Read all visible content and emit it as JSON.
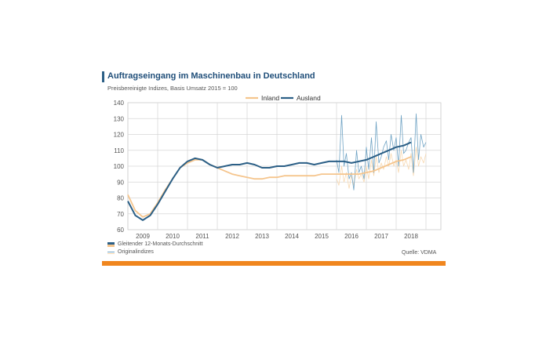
{
  "chart_data": {
    "type": "line",
    "title": "Auftragseingang im Maschinenbau in Deutschland",
    "subtitle": "Preisbereinigte Indizes, Basis Umsatz 2015 = 100",
    "ylim": [
      60,
      140
    ],
    "y_ticks": [
      "60",
      "70",
      "80",
      "90",
      "100",
      "110",
      "120",
      "130",
      "140"
    ],
    "x_tick_labels": [
      "2009",
      "2010",
      "2011",
      "2012",
      "2013",
      "2014",
      "2015",
      "2016",
      "2017",
      "2018"
    ],
    "x_range": [
      2008.5,
      2019.0
    ],
    "grid": true,
    "legend_position": "top",
    "colors": {
      "inland": "#f5c58d",
      "ausland": "#2b5f86",
      "ausland_orig": "#6fa3c4",
      "inland_orig": "#f7d8b0",
      "accent": "#f0861e"
    },
    "legend": [
      "Inland",
      "Ausland"
    ],
    "footer_legend": [
      "Gleitender 12-Monats-Durchschnitt",
      "Originalindizes"
    ],
    "source": "Quelle: VDMA",
    "series": [
      {
        "name": "Inland",
        "x": [
          2008.5,
          2008.75,
          2009.0,
          2009.25,
          2009.5,
          2009.75,
          2010.0,
          2010.25,
          2010.5,
          2010.75,
          2011.0,
          2011.25,
          2011.5,
          2011.75,
          2012.0,
          2012.25,
          2012.5,
          2012.75,
          2013.0,
          2013.25,
          2013.5,
          2013.75,
          2014.0,
          2014.25,
          2014.5,
          2014.75,
          2015.0,
          2015.25,
          2015.5,
          2015.75,
          2016.0,
          2016.25,
          2016.5,
          2016.75,
          2017.0,
          2017.25,
          2017.5,
          2017.75,
          2018.0
        ],
        "values": [
          82,
          72,
          68,
          70,
          77,
          85,
          92,
          99,
          102,
          104,
          104,
          101,
          99,
          97,
          95,
          94,
          93,
          92,
          92,
          93,
          93,
          94,
          94,
          94,
          94,
          94,
          95,
          95,
          95,
          95,
          95,
          95,
          96,
          97,
          99,
          101,
          103,
          104,
          106
        ]
      },
      {
        "name": "Ausland",
        "x": [
          2008.5,
          2008.75,
          2009.0,
          2009.25,
          2009.5,
          2009.75,
          2010.0,
          2010.25,
          2010.5,
          2010.75,
          2011.0,
          2011.25,
          2011.5,
          2011.75,
          2012.0,
          2012.25,
          2012.5,
          2012.75,
          2013.0,
          2013.25,
          2013.5,
          2013.75,
          2014.0,
          2014.25,
          2014.5,
          2014.75,
          2015.0,
          2015.25,
          2015.5,
          2015.75,
          2016.0,
          2016.25,
          2016.5,
          2016.75,
          2017.0,
          2017.25,
          2017.5,
          2017.75,
          2018.0
        ],
        "values": [
          78,
          69,
          66,
          69,
          76,
          84,
          92,
          99,
          103,
          105,
          104,
          101,
          99,
          100,
          101,
          101,
          102,
          101,
          99,
          99,
          100,
          100,
          101,
          102,
          102,
          101,
          102,
          103,
          103,
          103,
          102,
          103,
          104,
          106,
          108,
          110,
          112,
          113,
          115
        ]
      },
      {
        "name": "Ausland-Originalindizes",
        "x": [
          2015.5,
          2015.58,
          2015.67,
          2015.75,
          2015.83,
          2015.92,
          2016.0,
          2016.08,
          2016.17,
          2016.25,
          2016.33,
          2016.42,
          2016.5,
          2016.58,
          2016.67,
          2016.75,
          2016.83,
          2016.92,
          2017.0,
          2017.08,
          2017.17,
          2017.25,
          2017.33,
          2017.42,
          2017.5,
          2017.58,
          2017.67,
          2017.75,
          2017.83,
          2017.92,
          2018.0,
          2018.08,
          2018.17,
          2018.25,
          2018.33,
          2018.42,
          2018.5
        ],
        "values": [
          104,
          96,
          132,
          100,
          108,
          92,
          96,
          85,
          110,
          96,
          100,
          92,
          112,
          98,
          118,
          96,
          128,
          102,
          106,
          112,
          116,
          104,
          120,
          110,
          118,
          100,
          132,
          108,
          110,
          115,
          118,
          96,
          133,
          104,
          120,
          112,
          115
        ]
      },
      {
        "name": "Inland-Originalindizes",
        "x": [
          2015.5,
          2015.58,
          2015.67,
          2015.75,
          2015.83,
          2015.92,
          2016.0,
          2016.08,
          2016.17,
          2016.25,
          2016.33,
          2016.42,
          2016.5,
          2016.58,
          2016.67,
          2016.75,
          2016.83,
          2016.92,
          2017.0,
          2017.08,
          2017.17,
          2017.25,
          2017.33,
          2017.42,
          2017.5,
          2017.58,
          2017.67,
          2017.75,
          2017.83,
          2017.92,
          2018.0,
          2018.08,
          2018.17,
          2018.25,
          2018.33,
          2018.42,
          2018.5
        ],
        "values": [
          92,
          88,
          100,
          90,
          96,
          86,
          94,
          88,
          98,
          92,
          95,
          90,
          100,
          92,
          104,
          94,
          106,
          96,
          102,
          98,
          106,
          100,
          108,
          100,
          104,
          96,
          110,
          100,
          104,
          98,
          108,
          94,
          112,
          100,
          106,
          102,
          108
        ]
      }
    ]
  }
}
